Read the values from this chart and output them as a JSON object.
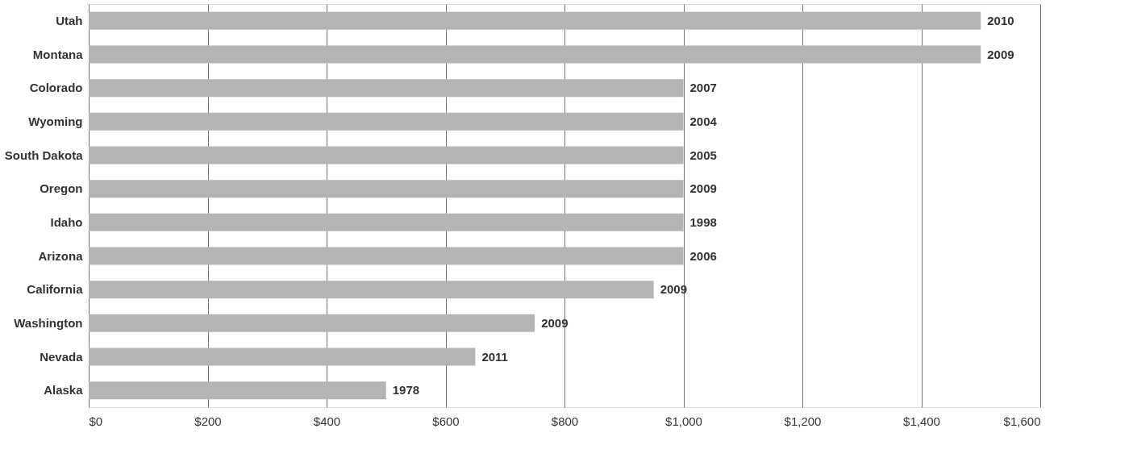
{
  "chart_data": {
    "type": "bar",
    "orientation": "horizontal",
    "categories": [
      "Utah",
      "Montana",
      "Colorado",
      "Wyoming",
      "South Dakota",
      "Oregon",
      "Idaho",
      "Arizona",
      "California",
      "Washington",
      "Nevada",
      "Alaska"
    ],
    "values": [
      1500,
      1500,
      1000,
      1000,
      1000,
      1000,
      1000,
      1000,
      950,
      750,
      650,
      500
    ],
    "annotations": [
      {
        "text": "2010",
        "x": 1500,
        "y": "Utah"
      },
      {
        "text": "2009",
        "x": 1500,
        "y": "Montana"
      },
      {
        "text": "2007",
        "x": 1000,
        "y": "Colorado"
      },
      {
        "text": "2004",
        "x": 1000,
        "y": "Wyoming"
      },
      {
        "text": "2005",
        "x": 1000,
        "y": "South Dakota"
      },
      {
        "text": "2009",
        "x": 1000,
        "y": "Oregon"
      },
      {
        "text": "1998",
        "x": 1000,
        "y": "Idaho"
      },
      {
        "text": "2006",
        "x": 1000,
        "y": "Arizona"
      },
      {
        "text": "2009",
        "x": 950,
        "y": "California"
      },
      {
        "text": "2009",
        "x": 750,
        "y": "Washington"
      },
      {
        "text": "2011",
        "x": 650,
        "y": "Nevada"
      },
      {
        "text": "1978",
        "x": 500,
        "y": "Alaska"
      }
    ],
    "color": "#b4b4b4",
    "xlim": [
      0,
      1600
    ],
    "xticks": [
      {
        "value": 0,
        "label": "$0"
      },
      {
        "value": 200,
        "label": "$200"
      },
      {
        "value": 400,
        "label": "$400"
      },
      {
        "value": 600,
        "label": "$600"
      },
      {
        "value": 800,
        "label": "$800"
      },
      {
        "value": 1000,
        "label": "$1,000"
      },
      {
        "value": 1200,
        "label": "$1,200"
      },
      {
        "value": 1400,
        "label": "$1,400"
      },
      {
        "value": 1600,
        "label": "$1,600"
      }
    ],
    "grid": "x"
  }
}
